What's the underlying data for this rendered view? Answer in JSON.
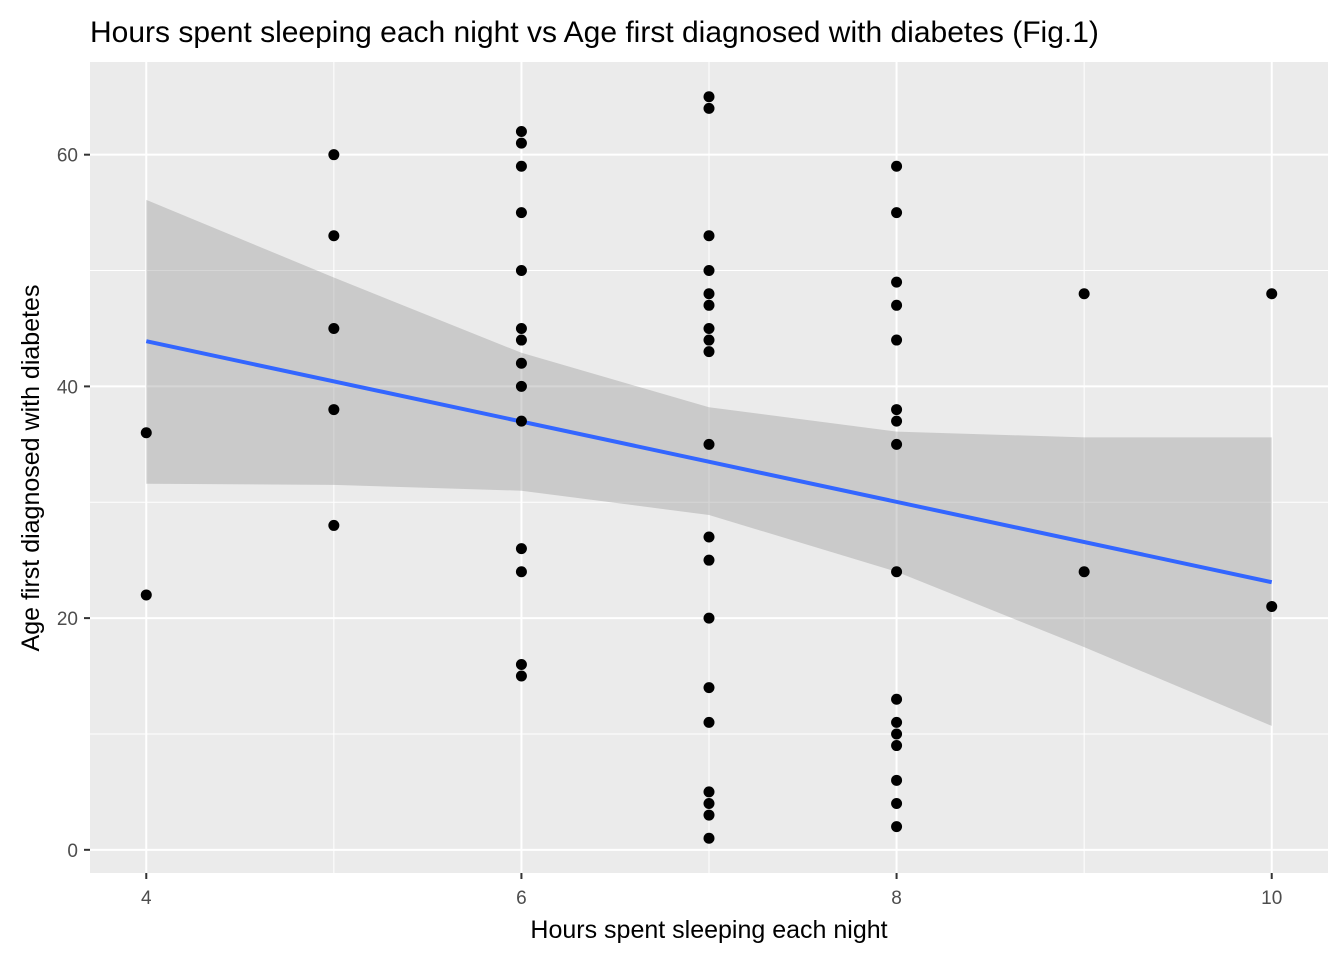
{
  "chart_data": {
    "type": "scatter",
    "title": "Hours spent sleeping each night vs Age first diagnosed with diabetes (Fig.1)",
    "xlabel": "Hours spent sleeping each night",
    "ylabel": "Age first diagnosed with diabetes",
    "xlim": [
      3.7,
      10.3
    ],
    "ylim": [
      -2,
      68
    ],
    "x_ticks": [
      4,
      6,
      8,
      10
    ],
    "y_ticks": [
      0,
      20,
      40,
      60
    ],
    "x_tick_labels": [
      "4",
      "6",
      "8",
      "10"
    ],
    "y_tick_labels": [
      "0",
      "20",
      "40",
      "60"
    ],
    "grid": true,
    "colors": {
      "panel": "#ebebeb",
      "grid": "#ffffff",
      "point": "#000000",
      "fit_line": "#3366ff",
      "band": "#999999"
    },
    "points": [
      {
        "x": 4,
        "y": 36
      },
      {
        "x": 4,
        "y": 22
      },
      {
        "x": 5,
        "y": 60
      },
      {
        "x": 5,
        "y": 53
      },
      {
        "x": 5,
        "y": 45
      },
      {
        "x": 5,
        "y": 38
      },
      {
        "x": 5,
        "y": 28
      },
      {
        "x": 6,
        "y": 62
      },
      {
        "x": 6,
        "y": 61
      },
      {
        "x": 6,
        "y": 59
      },
      {
        "x": 6,
        "y": 55
      },
      {
        "x": 6,
        "y": 50
      },
      {
        "x": 6,
        "y": 45
      },
      {
        "x": 6,
        "y": 44
      },
      {
        "x": 6,
        "y": 42
      },
      {
        "x": 6,
        "y": 40
      },
      {
        "x": 6,
        "y": 37
      },
      {
        "x": 6,
        "y": 26
      },
      {
        "x": 6,
        "y": 24
      },
      {
        "x": 6,
        "y": 16
      },
      {
        "x": 6,
        "y": 15
      },
      {
        "x": 7,
        "y": 65
      },
      {
        "x": 7,
        "y": 64
      },
      {
        "x": 7,
        "y": 53
      },
      {
        "x": 7,
        "y": 50
      },
      {
        "x": 7,
        "y": 48
      },
      {
        "x": 7,
        "y": 47
      },
      {
        "x": 7,
        "y": 45
      },
      {
        "x": 7,
        "y": 44
      },
      {
        "x": 7,
        "y": 43
      },
      {
        "x": 7,
        "y": 35
      },
      {
        "x": 7,
        "y": 27
      },
      {
        "x": 7,
        "y": 25
      },
      {
        "x": 7,
        "y": 20
      },
      {
        "x": 7,
        "y": 14
      },
      {
        "x": 7,
        "y": 11
      },
      {
        "x": 7,
        "y": 5
      },
      {
        "x": 7,
        "y": 4
      },
      {
        "x": 7,
        "y": 3
      },
      {
        "x": 7,
        "y": 1
      },
      {
        "x": 8,
        "y": 59
      },
      {
        "x": 8,
        "y": 55
      },
      {
        "x": 8,
        "y": 49
      },
      {
        "x": 8,
        "y": 47
      },
      {
        "x": 8,
        "y": 44
      },
      {
        "x": 8,
        "y": 38
      },
      {
        "x": 8,
        "y": 37
      },
      {
        "x": 8,
        "y": 35
      },
      {
        "x": 8,
        "y": 24
      },
      {
        "x": 8,
        "y": 13
      },
      {
        "x": 8,
        "y": 11
      },
      {
        "x": 8,
        "y": 10
      },
      {
        "x": 8,
        "y": 9
      },
      {
        "x": 8,
        "y": 6
      },
      {
        "x": 8,
        "y": 4
      },
      {
        "x": 8,
        "y": 2
      },
      {
        "x": 9,
        "y": 48
      },
      {
        "x": 9,
        "y": 24
      },
      {
        "x": 10,
        "y": 48
      },
      {
        "x": 10,
        "y": 21
      }
    ],
    "fit_line": {
      "x": [
        4,
        10
      ],
      "y": [
        43.9,
        23.1
      ]
    },
    "confidence_band": {
      "x": [
        4,
        5,
        6,
        7,
        8,
        9,
        10
      ],
      "lower": [
        31.6,
        31.5,
        31.0,
        28.9,
        24.0,
        17.5,
        10.7
      ],
      "upper": [
        56.1,
        49.4,
        42.9,
        38.2,
        36.1,
        35.6,
        35.6
      ]
    }
  }
}
